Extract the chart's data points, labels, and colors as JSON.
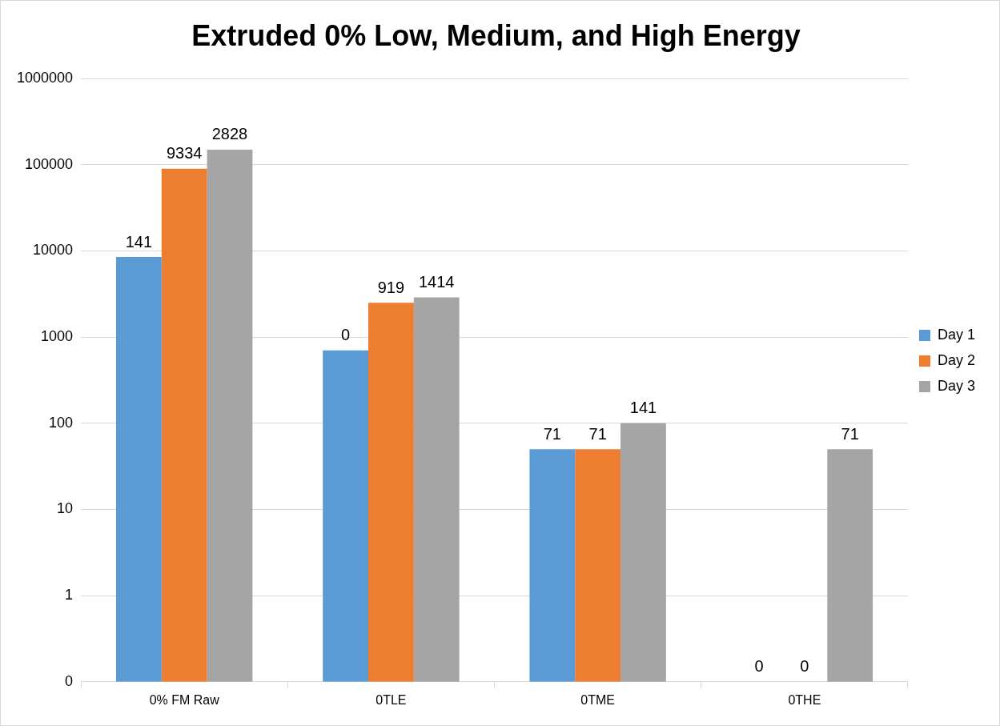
{
  "chart_data": {
    "type": "bar",
    "title": "Extruded 0% Low, Medium, and High Energy",
    "categories": [
      "0% FM Raw",
      "0TLE",
      "0TME",
      "0THE"
    ],
    "series": [
      {
        "name": "Day 1",
        "color": "#5b9bd5",
        "values": [
          8500,
          700,
          50,
          null
        ]
      },
      {
        "name": "Day 2",
        "color": "#ed7d31",
        "values": [
          90000,
          2500,
          50,
          null
        ]
      },
      {
        "name": "Day 3",
        "color": "#a5a5a5",
        "values": [
          150000,
          2900,
          100,
          50
        ]
      }
    ],
    "annotations": [
      "141",
      "9334",
      "2828",
      "0",
      "919",
      "1414",
      "71",
      "71",
      "141",
      "0",
      "0",
      "71"
    ],
    "log": "y",
    "ylim": [
      0.1,
      1000000
    ],
    "yticks": [
      {
        "value": 0.1,
        "label": "0"
      },
      1,
      10,
      100,
      1000,
      10000,
      100000,
      1000000
    ],
    "grid": "y",
    "legend": "right"
  }
}
